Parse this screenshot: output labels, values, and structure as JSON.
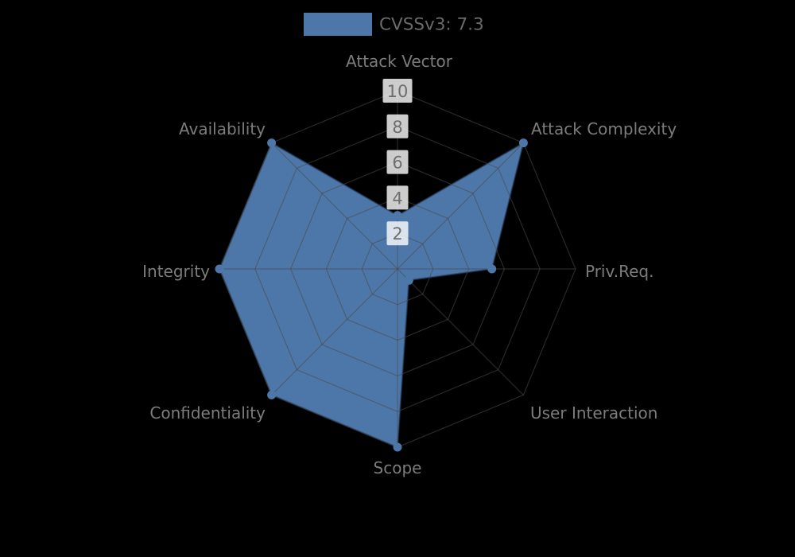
{
  "chart_data": {
    "type": "radar",
    "legend": {
      "label": "CVSSv3: 7.3",
      "swatch_color": "#4d77a9"
    },
    "axes": [
      {
        "label": "Attack Vector",
        "value": 3.0
      },
      {
        "label": "Attack Complexity",
        "value": 10.0
      },
      {
        "label": "Priv.Req.",
        "value": 5.3
      },
      {
        "label": "User Interaction",
        "value": 0.9
      },
      {
        "label": "Scope",
        "value": 10.0
      },
      {
        "label": "Confidentiality",
        "value": 10.0
      },
      {
        "label": "Integrity",
        "value": 10.0
      },
      {
        "label": "Availability",
        "value": 10.0
      }
    ],
    "scale": {
      "min": 0,
      "max": 10,
      "tick_labels": [
        "10",
        "8",
        "6",
        "4",
        "2"
      ],
      "tick_values": [
        10,
        8,
        6,
        4,
        2
      ]
    },
    "layout_hints": {
      "grid": "spider-web, 8 spokes, 5 rings",
      "legend_position": "top-center",
      "background": "#000000"
    },
    "colors": {
      "series_fill": "#4d77a9",
      "series_edge": "rgba(38,62,92,0.55)",
      "grid_line": "rgba(72,72,72,0.55)",
      "axis_label_text": "#7c7c7c",
      "tick_text": "#6e6e6e",
      "tick_box": "rgba(255,255,255,0.8)",
      "legend_text": "#6a6a6a"
    }
  }
}
